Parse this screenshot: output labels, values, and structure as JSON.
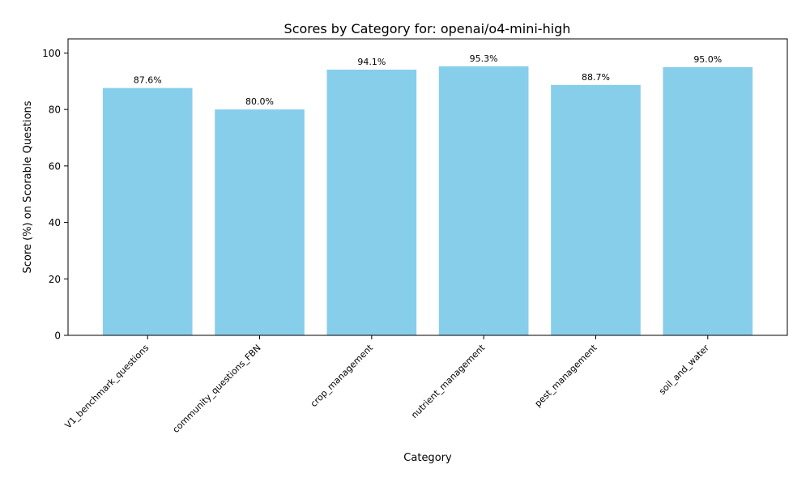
{
  "chart_data": {
    "type": "bar",
    "title": "Scores by Category for: openai/o4-mini-high",
    "xlabel": "Category",
    "ylabel": "Score (%) on Scorable Questions",
    "categories": [
      "V1_benchmark_questions",
      "community_questions_FBN",
      "crop_management",
      "nutrient_management",
      "pest_management",
      "soil_and_water"
    ],
    "values": [
      87.6,
      80.0,
      94.1,
      95.3,
      88.7,
      95.0
    ],
    "data_labels": [
      "87.6%",
      "80.0%",
      "94.1%",
      "95.3%",
      "88.7%",
      "95.0%"
    ],
    "ylim": [
      0,
      105
    ],
    "yticks": [
      0,
      20,
      40,
      60,
      80,
      100
    ],
    "bar_color": "#87ceeb",
    "grid": false,
    "legend": "none"
  }
}
